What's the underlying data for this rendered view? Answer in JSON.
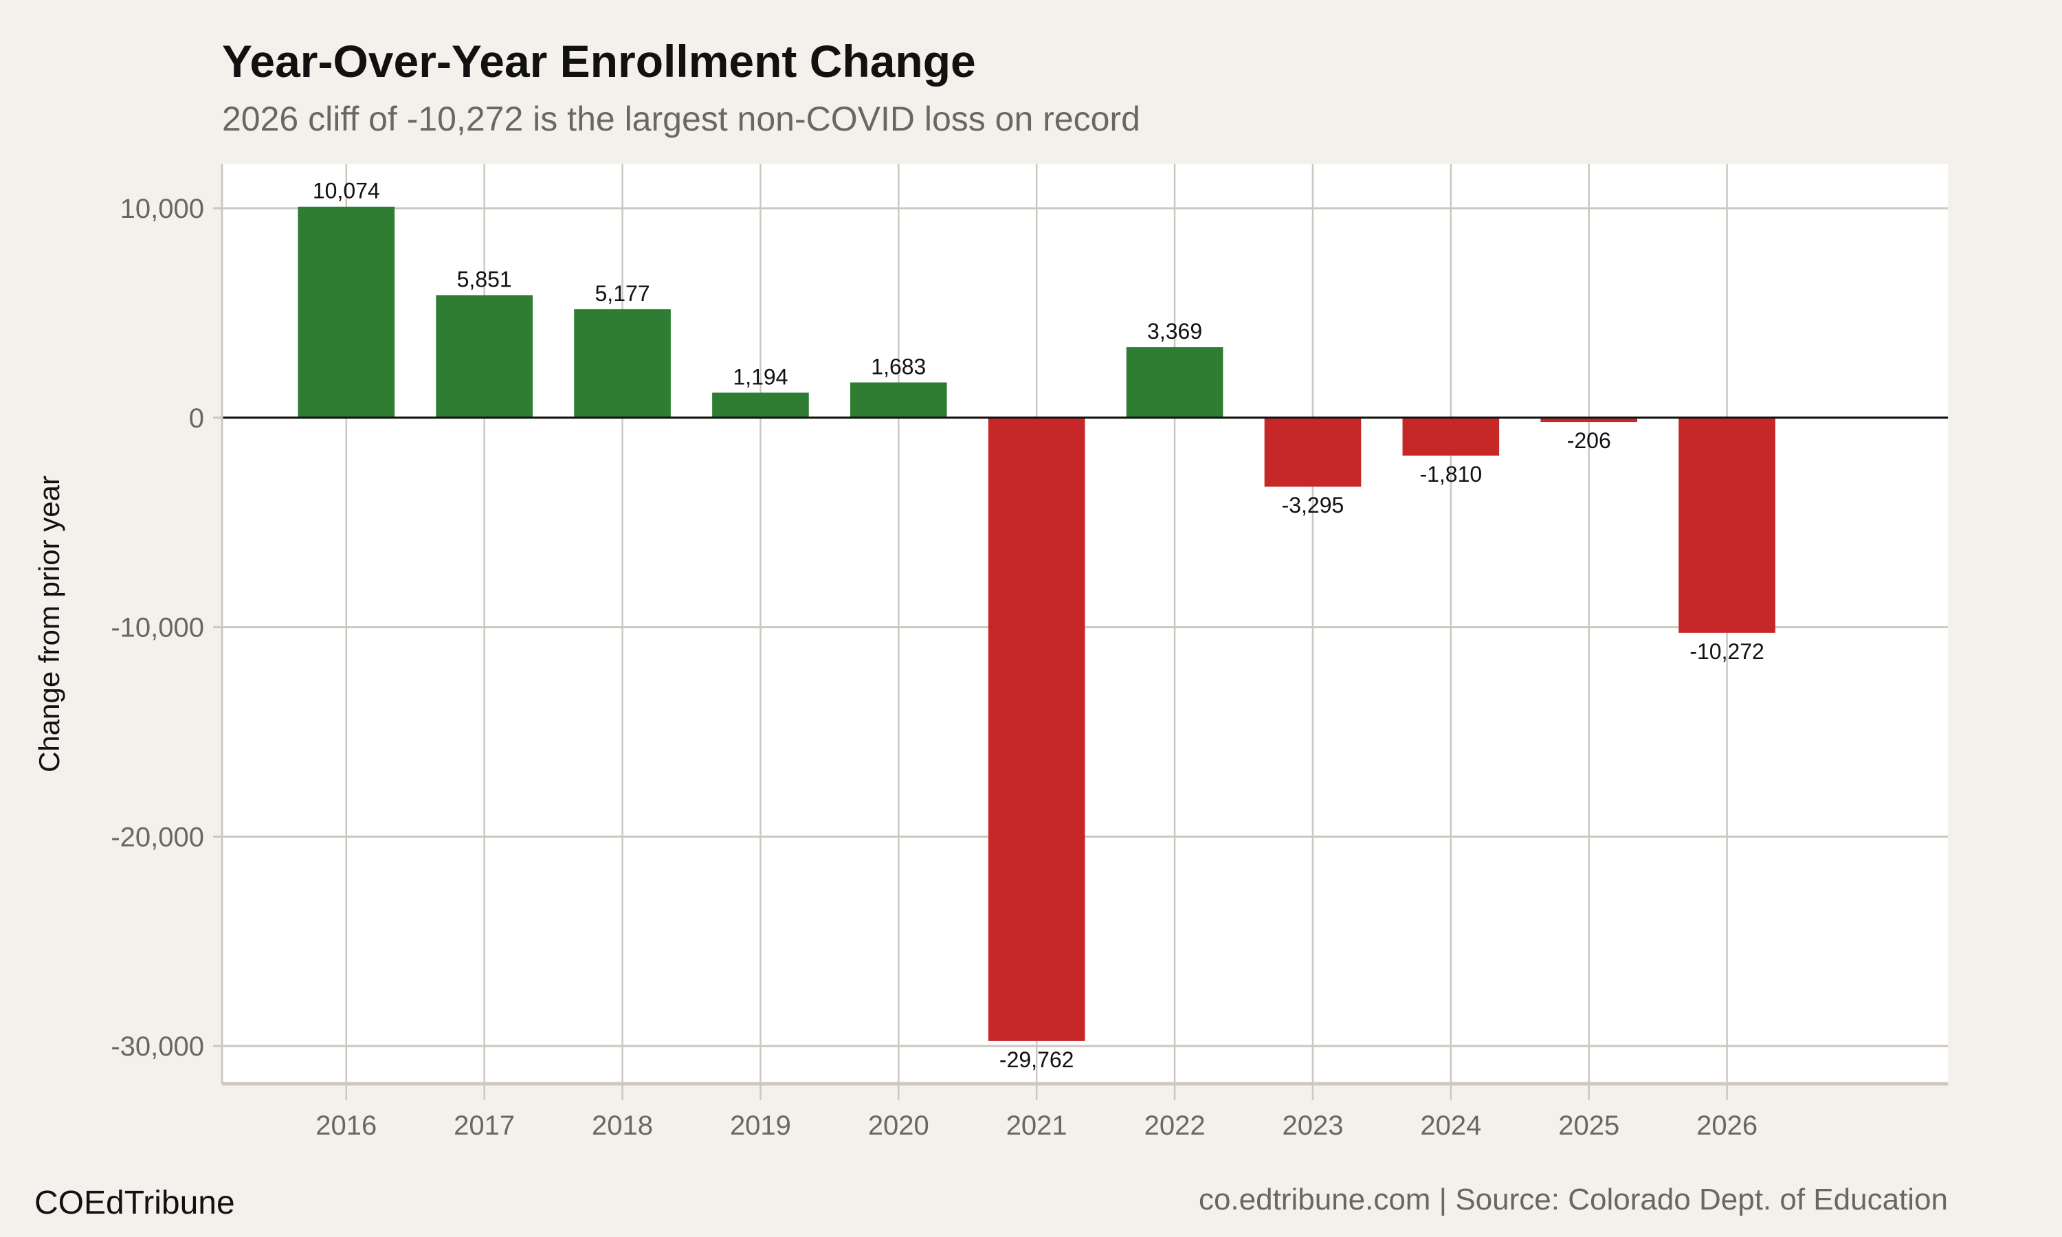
{
  "title": "Year-Over-Year Enrollment Change",
  "subtitle": "2026 cliff of -10,272 is the largest non-COVID loss on record",
  "footer": {
    "brand": "COEdTribune",
    "source": "co.edtribune.com | Source: Colorado Dept. of Education"
  },
  "chart_data": {
    "type": "bar",
    "title": "Year-Over-Year Enrollment Change",
    "subtitle": "2026 cliff of -10,272 is the largest non-COVID loss on record",
    "xlabel": "",
    "ylabel": "Change from prior year",
    "categories": [
      "2016",
      "2017",
      "2018",
      "2019",
      "2020",
      "2021",
      "2022",
      "2023",
      "2024",
      "2025",
      "2026"
    ],
    "values": [
      10074,
      5851,
      5177,
      1194,
      1683,
      -29762,
      3369,
      -3295,
      -1810,
      -206,
      -10272
    ],
    "data_labels": [
      "10,074",
      "5,851",
      "5,177",
      "1,194",
      "1,683",
      "-29,762",
      "3,369",
      "-3,295",
      "-1,810",
      "-206",
      "-10,272"
    ],
    "yticks": [
      10000,
      0,
      -10000,
      -20000,
      -30000
    ],
    "ytick_labels": [
      "10,000",
      "0",
      "-10,000",
      "-20,000",
      "-30,000"
    ],
    "ylim": [
      -31800,
      12100
    ],
    "xlim": [
      2015.1,
      2027.6
    ],
    "grid": true,
    "legend": "none",
    "colors": {
      "positive": "#2e7d32",
      "negative": "#c62828",
      "background": "#f4f1ec",
      "panel": "#ffffff",
      "grid": "#ccc8c0",
      "zero_line": "#111111"
    }
  }
}
